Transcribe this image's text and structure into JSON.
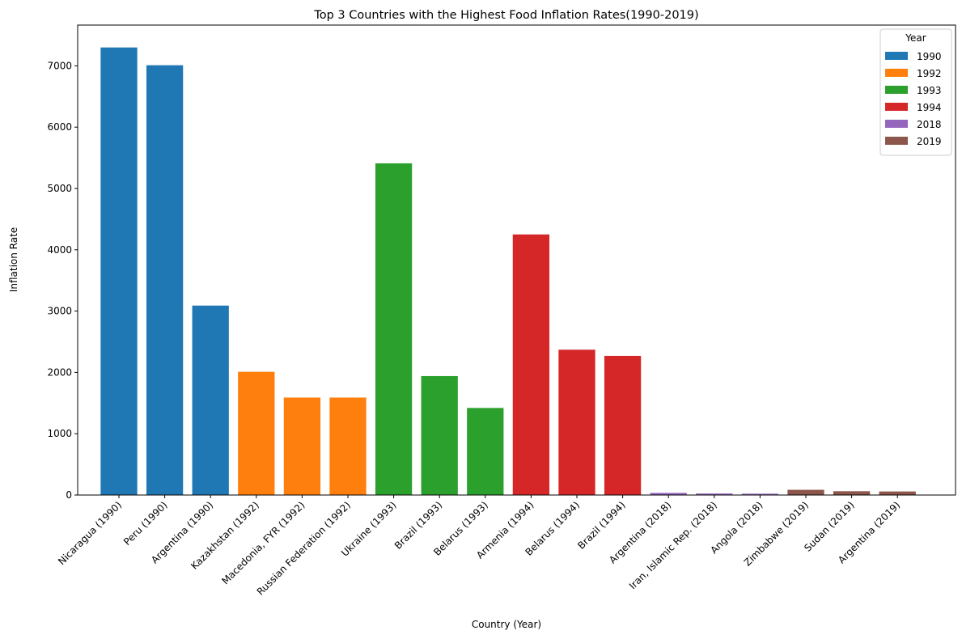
{
  "chart_data": {
    "type": "bar",
    "title": "Top 3 Countries with the Highest Food Inflation Rates(1990-2019)",
    "xlabel": "Country (Year)",
    "ylabel": "Inflation Rate",
    "ylim": [
      0,
      7665
    ],
    "yticks": [
      0,
      1000,
      2000,
      3000,
      4000,
      5000,
      6000,
      7000
    ],
    "grid": false,
    "legend": {
      "title": "Year",
      "placement": "top-right",
      "entries": [
        {
          "label": "1990",
          "color": "#1f77b4"
        },
        {
          "label": "1992",
          "color": "#ff7f0e"
        },
        {
          "label": "1993",
          "color": "#2ca02c"
        },
        {
          "label": "1994",
          "color": "#d62728"
        },
        {
          "label": "2018",
          "color": "#9467bd"
        },
        {
          "label": "2019",
          "color": "#8c564b"
        }
      ]
    },
    "categories": [
      "Nicaragua (1990)",
      "Peru (1990)",
      "Argentina (1990)",
      "Kazakhstan (1992)",
      "Macedonia, FYR (1992)",
      "Russian Federation (1992)",
      "Ukraine (1993)",
      "Brazil (1993)",
      "Belarus (1993)",
      "Armenia (1994)",
      "Belarus (1994)",
      "Brazil (1994)",
      "Argentina (2018)",
      "Iran, Islamic Rep. (2018)",
      "Angola (2018)",
      "Zimbabwe (2019)",
      "Sudan (2019)",
      "Argentina (2019)"
    ],
    "values": [
      7300,
      7010,
      3090,
      2010,
      1590,
      1590,
      5410,
      1940,
      1420,
      4250,
      2370,
      2270,
      35,
      25,
      22,
      85,
      62,
      58
    ],
    "bar_year": [
      "1990",
      "1990",
      "1990",
      "1992",
      "1992",
      "1992",
      "1993",
      "1993",
      "1993",
      "1994",
      "1994",
      "1994",
      "2018",
      "2018",
      "2018",
      "2019",
      "2019",
      "2019"
    ]
  }
}
